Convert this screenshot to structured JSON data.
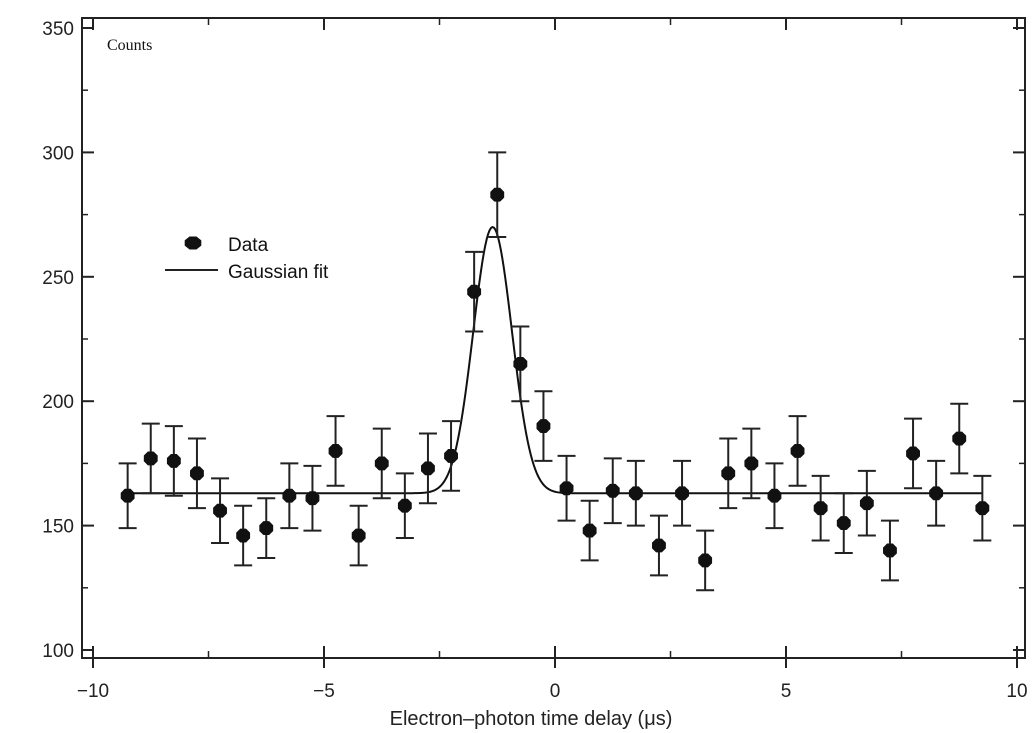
{
  "chart_data": {
    "type": "scatter",
    "inner_label": "Counts",
    "xlabel": "Electron–photon time delay (μs)",
    "ylabel": "",
    "xlim": [
      -10,
      10
    ],
    "ylim": [
      100,
      350
    ],
    "x_ticks": [
      -10,
      -5,
      0,
      5,
      10
    ],
    "x_tick_labels": [
      "−10",
      "−5",
      "0",
      "5",
      "10"
    ],
    "y_ticks": [
      100,
      150,
      200,
      250,
      300,
      350
    ],
    "y_tick_labels": [
      "100",
      "150",
      "200",
      "250",
      "300",
      "350"
    ],
    "grid": false,
    "legend_position": "upper-left",
    "series": [
      {
        "name": "Data",
        "kind": "points-with-error-bars",
        "color": "#111111",
        "points": [
          {
            "x": -9.25,
            "y": 162,
            "err": 13
          },
          {
            "x": -8.75,
            "y": 177,
            "err": 14
          },
          {
            "x": -8.25,
            "y": 176,
            "err": 14
          },
          {
            "x": -7.75,
            "y": 171,
            "err": 14
          },
          {
            "x": -7.25,
            "y": 156,
            "err": 13
          },
          {
            "x": -6.75,
            "y": 146,
            "err": 12
          },
          {
            "x": -6.25,
            "y": 149,
            "err": 12
          },
          {
            "x": -5.75,
            "y": 162,
            "err": 13
          },
          {
            "x": -5.25,
            "y": 161,
            "err": 13
          },
          {
            "x": -4.75,
            "y": 180,
            "err": 14
          },
          {
            "x": -4.25,
            "y": 146,
            "err": 12
          },
          {
            "x": -3.75,
            "y": 175,
            "err": 14
          },
          {
            "x": -3.25,
            "y": 158,
            "err": 13
          },
          {
            "x": -2.75,
            "y": 173,
            "err": 14
          },
          {
            "x": -2.25,
            "y": 178,
            "err": 14
          },
          {
            "x": -1.75,
            "y": 244,
            "err": 16
          },
          {
            "x": -1.25,
            "y": 283,
            "err": 17
          },
          {
            "x": -0.75,
            "y": 215,
            "err": 15
          },
          {
            "x": -0.25,
            "y": 190,
            "err": 14
          },
          {
            "x": 0.25,
            "y": 165,
            "err": 13
          },
          {
            "x": 0.75,
            "y": 148,
            "err": 12
          },
          {
            "x": 1.25,
            "y": 164,
            "err": 13
          },
          {
            "x": 1.75,
            "y": 163,
            "err": 13
          },
          {
            "x": 2.25,
            "y": 142,
            "err": 12
          },
          {
            "x": 2.75,
            "y": 163,
            "err": 13
          },
          {
            "x": 3.25,
            "y": 136,
            "err": 12
          },
          {
            "x": 3.75,
            "y": 171,
            "err": 14
          },
          {
            "x": 4.25,
            "y": 175,
            "err": 14
          },
          {
            "x": 4.75,
            "y": 162,
            "err": 13
          },
          {
            "x": 5.25,
            "y": 180,
            "err": 14
          },
          {
            "x": 5.75,
            "y": 157,
            "err": 13
          },
          {
            "x": 6.25,
            "y": 151,
            "err": 12
          },
          {
            "x": 6.75,
            "y": 159,
            "err": 13
          },
          {
            "x": 7.25,
            "y": 140,
            "err": 12
          },
          {
            "x": 7.75,
            "y": 179,
            "err": 14
          },
          {
            "x": 8.25,
            "y": 163,
            "err": 13
          },
          {
            "x": 8.75,
            "y": 185,
            "err": 14
          },
          {
            "x": 9.25,
            "y": 157,
            "err": 13
          }
        ]
      },
      {
        "name": "Gaussian fit",
        "kind": "curve",
        "color": "#111111",
        "x_range": [
          -9.25,
          9.25
        ],
        "baseline": 163,
        "amplitude": 107,
        "center": -1.35,
        "sigma": 0.42
      }
    ]
  }
}
